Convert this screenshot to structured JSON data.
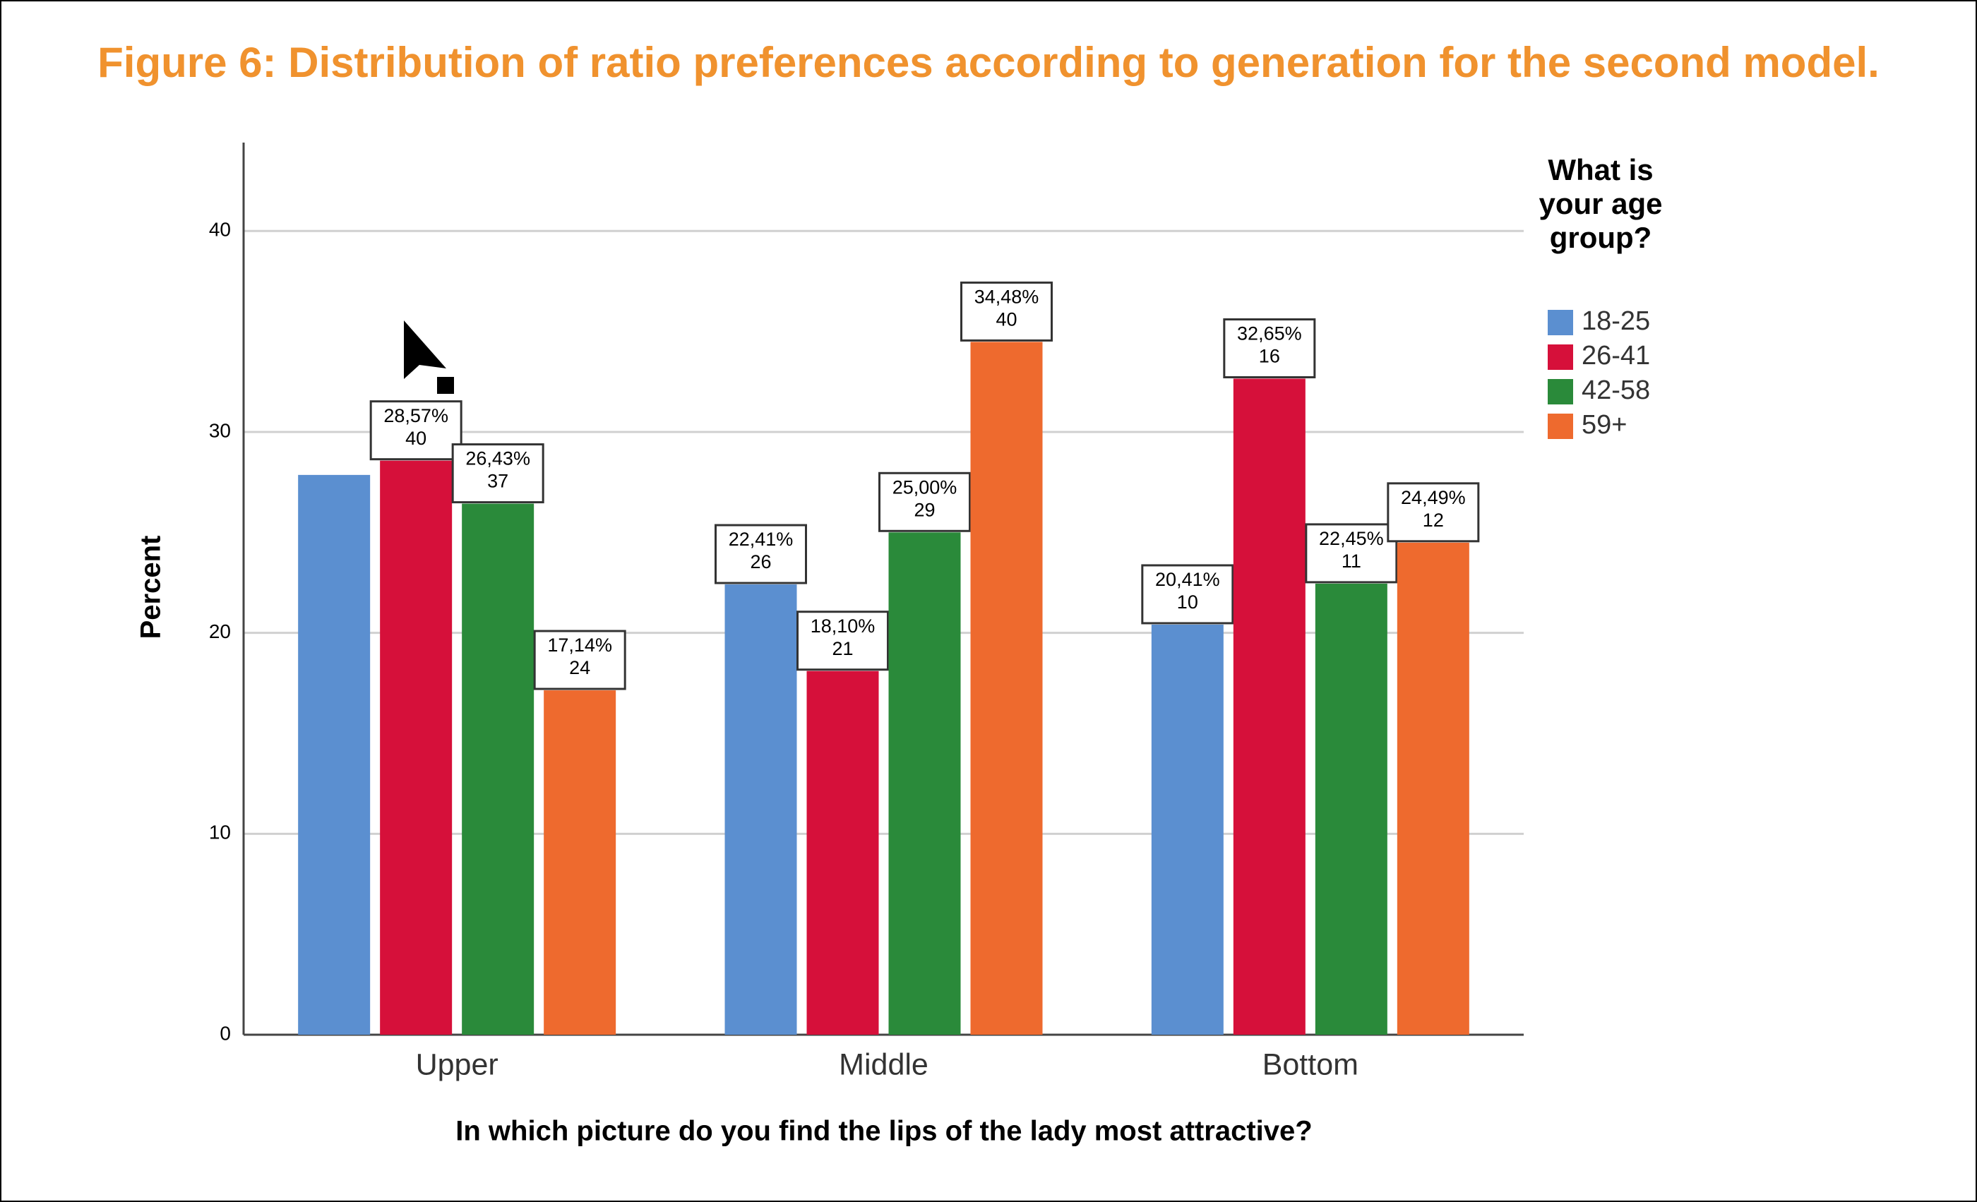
{
  "chart_data": {
    "type": "bar",
    "title": "Figure 6: Distribution of ratio preferences according to generation for the second model.",
    "y_label": "Percent",
    "x_label": "In which picture do you find the lips of the lady most attractive?",
    "legend_title": "What is your age group?",
    "categories": [
      "Upper",
      "Middle",
      "Bottom"
    ],
    "series": [
      {
        "name": "18-25",
        "color": "#5b8fd0",
        "values": [
          27.86,
          22.41,
          20.41
        ],
        "value_labels": [
          null,
          "22,41%",
          "20,41%"
        ],
        "counts": [
          null,
          26,
          10
        ]
      },
      {
        "name": "26-41",
        "color": "#d6103a",
        "values": [
          28.57,
          18.1,
          32.65
        ],
        "value_labels": [
          "28,57%",
          "18,10%",
          "32,65%"
        ],
        "counts": [
          40,
          21,
          16
        ]
      },
      {
        "name": "42-58",
        "color": "#2a8a3a",
        "values": [
          26.43,
          25.0,
          22.45
        ],
        "value_labels": [
          "26,43%",
          "25,00%",
          "22,45%"
        ],
        "counts": [
          37,
          29,
          11
        ]
      },
      {
        "name": "59+",
        "color": "#ee6a2e",
        "values": [
          17.14,
          34.48,
          24.49
        ],
        "value_labels": [
          "17,14%",
          "34,48%",
          "24,49%"
        ],
        "counts": [
          24,
          40,
          12
        ]
      }
    ],
    "ylim": [
      0,
      44.4
    ],
    "yticks": [
      0,
      10,
      20,
      30,
      40
    ],
    "grid": true,
    "legend": "right"
  }
}
